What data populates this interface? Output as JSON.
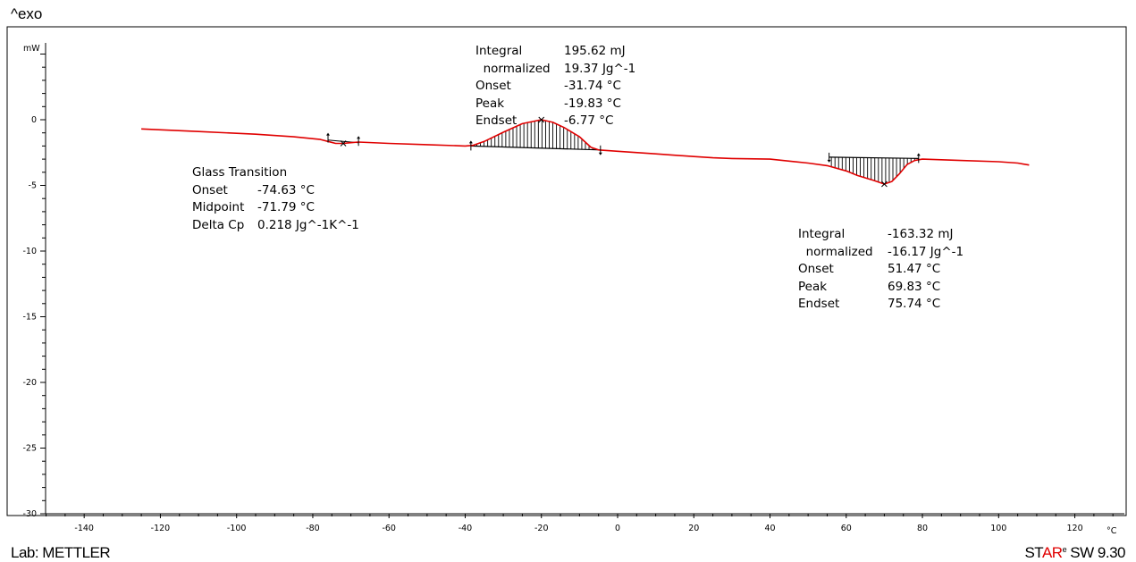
{
  "header": {
    "exo_label": "^exo"
  },
  "footer": {
    "lab": "Lab: METTLER",
    "sw_prefix_black": "ST",
    "sw_prefix_red": "AR",
    "sw_sup": "e",
    "sw_suffix": " SW 9.30"
  },
  "colors": {
    "curve": "#e00000",
    "baseline": "#000000",
    "hatch": "#000000"
  },
  "chart_data": {
    "type": "line",
    "xlabel": "°C",
    "ylabel": "mW",
    "xlim": [
      -150,
      130
    ],
    "ylim": [
      -30,
      5.8
    ],
    "x_ticks": [
      -140,
      -120,
      -100,
      -80,
      -60,
      -40,
      -20,
      0,
      20,
      40,
      60,
      80,
      100,
      120
    ],
    "y_ticks": [
      0,
      -5,
      -10,
      -15,
      -20,
      -25,
      -30
    ],
    "series": [
      {
        "name": "",
        "x": [
          -125,
          -110,
          -95,
          -85,
          -78,
          -76,
          -74,
          -72,
          -70,
          -68,
          -60,
          -50,
          -40,
          -38,
          -35,
          -30,
          -25,
          -20,
          -17,
          -14,
          -10,
          -7,
          -5,
          0,
          10,
          20,
          25,
          30,
          40,
          50,
          55,
          60,
          63,
          67,
          70,
          72,
          74,
          76,
          78,
          80,
          90,
          100,
          105,
          108
        ],
        "y": [
          -0.7,
          -0.9,
          -1.1,
          -1.3,
          -1.5,
          -1.65,
          -1.8,
          -1.8,
          -1.75,
          -1.7,
          -1.8,
          -1.9,
          -2.0,
          -1.95,
          -1.65,
          -0.95,
          -0.3,
          0.0,
          -0.2,
          -0.6,
          -1.3,
          -2.1,
          -2.3,
          -2.4,
          -2.6,
          -2.8,
          -2.9,
          -2.95,
          -3.0,
          -3.3,
          -3.5,
          -3.9,
          -4.25,
          -4.6,
          -4.9,
          -4.7,
          -4.1,
          -3.4,
          -3.1,
          -3.0,
          -3.1,
          -3.2,
          -3.3,
          -3.45
        ]
      }
    ],
    "baselines": [
      {
        "x": [
          -38.5,
          -4.5
        ],
        "y": [
          -2.0,
          -2.3
        ]
      },
      {
        "x": [
          55.5,
          79.0
        ],
        "y": [
          -2.85,
          -2.95
        ]
      }
    ],
    "annotations": {
      "glass_transition": {
        "title": "Glass Transition",
        "rows": [
          {
            "label": "Onset",
            "value": "-74.63 °C"
          },
          {
            "label": "Midpoint",
            "value": "-71.79 °C"
          },
          {
            "label": "Delta Cp",
            "value": "0.218 Jg^-1K^-1"
          }
        ]
      },
      "peak1": {
        "rows": [
          {
            "label": "Integral",
            "value": "195.62 mJ"
          },
          {
            "label": "  normalized",
            "value": "19.37 Jg^-1"
          },
          {
            "label": "Onset",
            "value": "-31.74 °C"
          },
          {
            "label": "Peak",
            "value": "-19.83 °C"
          },
          {
            "label": "Endset",
            "value": "-6.77 °C"
          }
        ]
      },
      "peak2": {
        "rows": [
          {
            "label": "Integral",
            "value": "-163.32 mJ"
          },
          {
            "label": "  normalized",
            "value": "-16.17 Jg^-1"
          },
          {
            "label": "Onset",
            "value": "51.47 °C"
          },
          {
            "label": "Peak",
            "value": "69.83 °C"
          },
          {
            "label": "Endset",
            "value": "75.74 °C"
          }
        ]
      }
    }
  }
}
